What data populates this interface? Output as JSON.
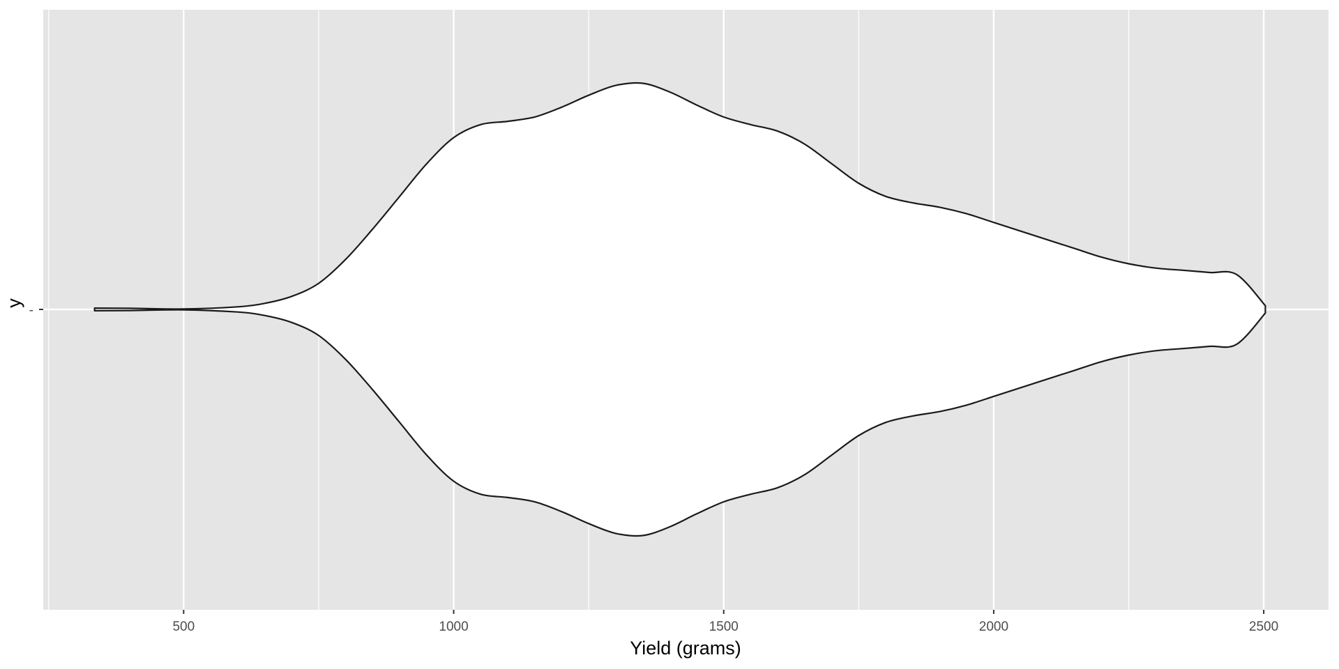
{
  "chart_data": {
    "type": "violin",
    "orientation": "horizontal",
    "xlabel": "Yield (grams)",
    "ylabel": "y",
    "category_labels": [
      "-"
    ],
    "xlim": [
      240,
      2620
    ],
    "x_ticks": [
      500,
      1000,
      1500,
      2000,
      2500
    ],
    "x_tick_labels": [
      "500",
      "1000",
      "1500",
      "2000",
      "2500"
    ],
    "x_minor_ticks": [
      250,
      750,
      1250,
      1750,
      2250
    ],
    "grid": true,
    "background_color": "#e5e5e5",
    "grid_color": "#ffffff",
    "violin_fill": "#ffffff",
    "violin_stroke": "#1a1a1a",
    "density": {
      "x": [
        335,
        400,
        500,
        600,
        650,
        700,
        750,
        800,
        850,
        900,
        950,
        1000,
        1050,
        1100,
        1150,
        1200,
        1250,
        1300,
        1350,
        1400,
        1450,
        1500,
        1550,
        1600,
        1650,
        1700,
        1750,
        1800,
        1850,
        1900,
        1950,
        2000,
        2050,
        2100,
        2150,
        2200,
        2250,
        2300,
        2350,
        2400,
        2450,
        2503
      ],
      "half_width": [
        0.006,
        0.005,
        0.002,
        0.012,
        0.028,
        0.06,
        0.12,
        0.23,
        0.37,
        0.52,
        0.67,
        0.79,
        0.85,
        0.865,
        0.885,
        0.93,
        0.985,
        1.03,
        1.04,
        1.0,
        0.94,
        0.885,
        0.85,
        0.82,
        0.76,
        0.67,
        0.58,
        0.52,
        0.49,
        0.47,
        0.44,
        0.4,
        0.36,
        0.32,
        0.28,
        0.24,
        0.21,
        0.19,
        0.18,
        0.17,
        0.16,
        0.017
      ]
    }
  }
}
